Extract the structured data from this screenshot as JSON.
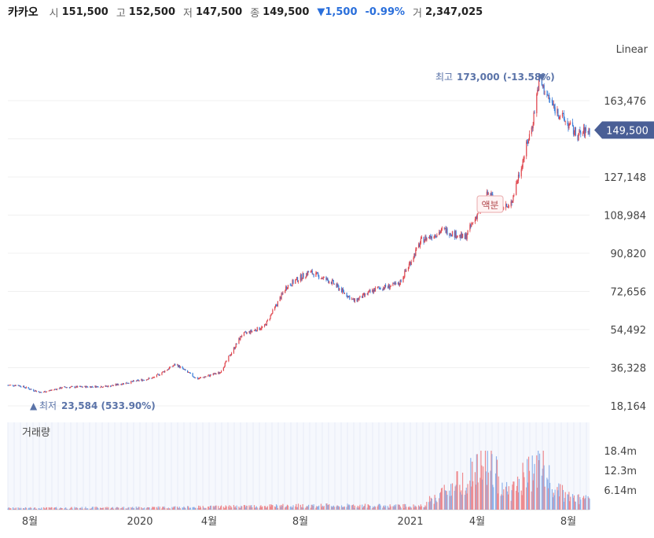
{
  "header": {
    "name": "카카오",
    "open_label": "시",
    "open": "151,500",
    "high_label": "고",
    "high": "152,500",
    "low_label": "저",
    "low": "147,500",
    "close_label": "종",
    "close": "149,500",
    "change": "▼1,500",
    "change_pct": "-0.99%",
    "volume_label": "거",
    "volume": "2,347,025"
  },
  "scale_mode": "Linear",
  "volume_title": "거래량",
  "colors": {
    "up": "#e0464e",
    "down": "#3b7dd8",
    "accent": "#4a5f96",
    "annotation": "#5a73a8"
  },
  "chart_data": {
    "type": "candlestick",
    "price_axis": {
      "ticks": [
        18164,
        36328,
        54492,
        72656,
        90820,
        108984,
        127148,
        145312,
        163476
      ],
      "labels": [
        "18,164",
        "36,328",
        "54,492",
        "72,656",
        "90,820",
        "108,984",
        "127,148",
        "145,312",
        "163,476"
      ]
    },
    "volume_axis": {
      "ticks": [
        6.14,
        12.3,
        18.4
      ],
      "labels": [
        "6.14m",
        "12.3m",
        "18.4m"
      ],
      "unit": "m"
    },
    "x_labels": [
      "8월",
      "2020",
      "4월",
      "8월",
      "2021",
      "4월",
      "8월"
    ],
    "last_price_label": "149,500",
    "high_annotation": {
      "label": "최고",
      "value": "173,000 (-13.58%)",
      "marker": "▼"
    },
    "low_annotation": {
      "label": "최저",
      "value": "23,584 (533.90%)",
      "marker": "▲"
    },
    "event_badge": "액분",
    "price_keypoints": [
      [
        "2019-07",
        28000
      ],
      [
        "2019-08",
        24500
      ],
      [
        "2019-09",
        27000
      ],
      [
        "2019-11",
        27500
      ],
      [
        "2020-01",
        31500
      ],
      [
        "2020-02",
        38000
      ],
      [
        "2020-03",
        31000
      ],
      [
        "2020-04",
        34000
      ],
      [
        "2020-05",
        52000
      ],
      [
        "2020-06",
        56000
      ],
      [
        "2020-07",
        75000
      ],
      [
        "2020-08",
        82000
      ],
      [
        "2020-09",
        77000
      ],
      [
        "2020-10",
        68000
      ],
      [
        "2020-11",
        74000
      ],
      [
        "2020-12",
        76000
      ],
      [
        "2021-01",
        97000
      ],
      [
        "2021-02",
        102000
      ],
      [
        "2021-03",
        98000
      ],
      [
        "2021-04",
        119000
      ],
      [
        "2021-05",
        112000
      ],
      [
        "2021-06",
        152000
      ],
      [
        "2021-06-24",
        173000
      ],
      [
        "2021-07",
        160000
      ],
      [
        "2021-08",
        147000
      ],
      [
        "2021-08-31",
        149500
      ]
    ],
    "volume_keypoints": [
      [
        "2019-07",
        0.6
      ],
      [
        "2020-02",
        0.9
      ],
      [
        "2020-08",
        1.6
      ],
      [
        "2021-01",
        1.4
      ],
      [
        "2021-04-15",
        18.0
      ],
      [
        "2021-05",
        6.5
      ],
      [
        "2021-06-25",
        18.4
      ],
      [
        "2021-07",
        7.5
      ],
      [
        "2021-08",
        4.0
      ]
    ]
  }
}
